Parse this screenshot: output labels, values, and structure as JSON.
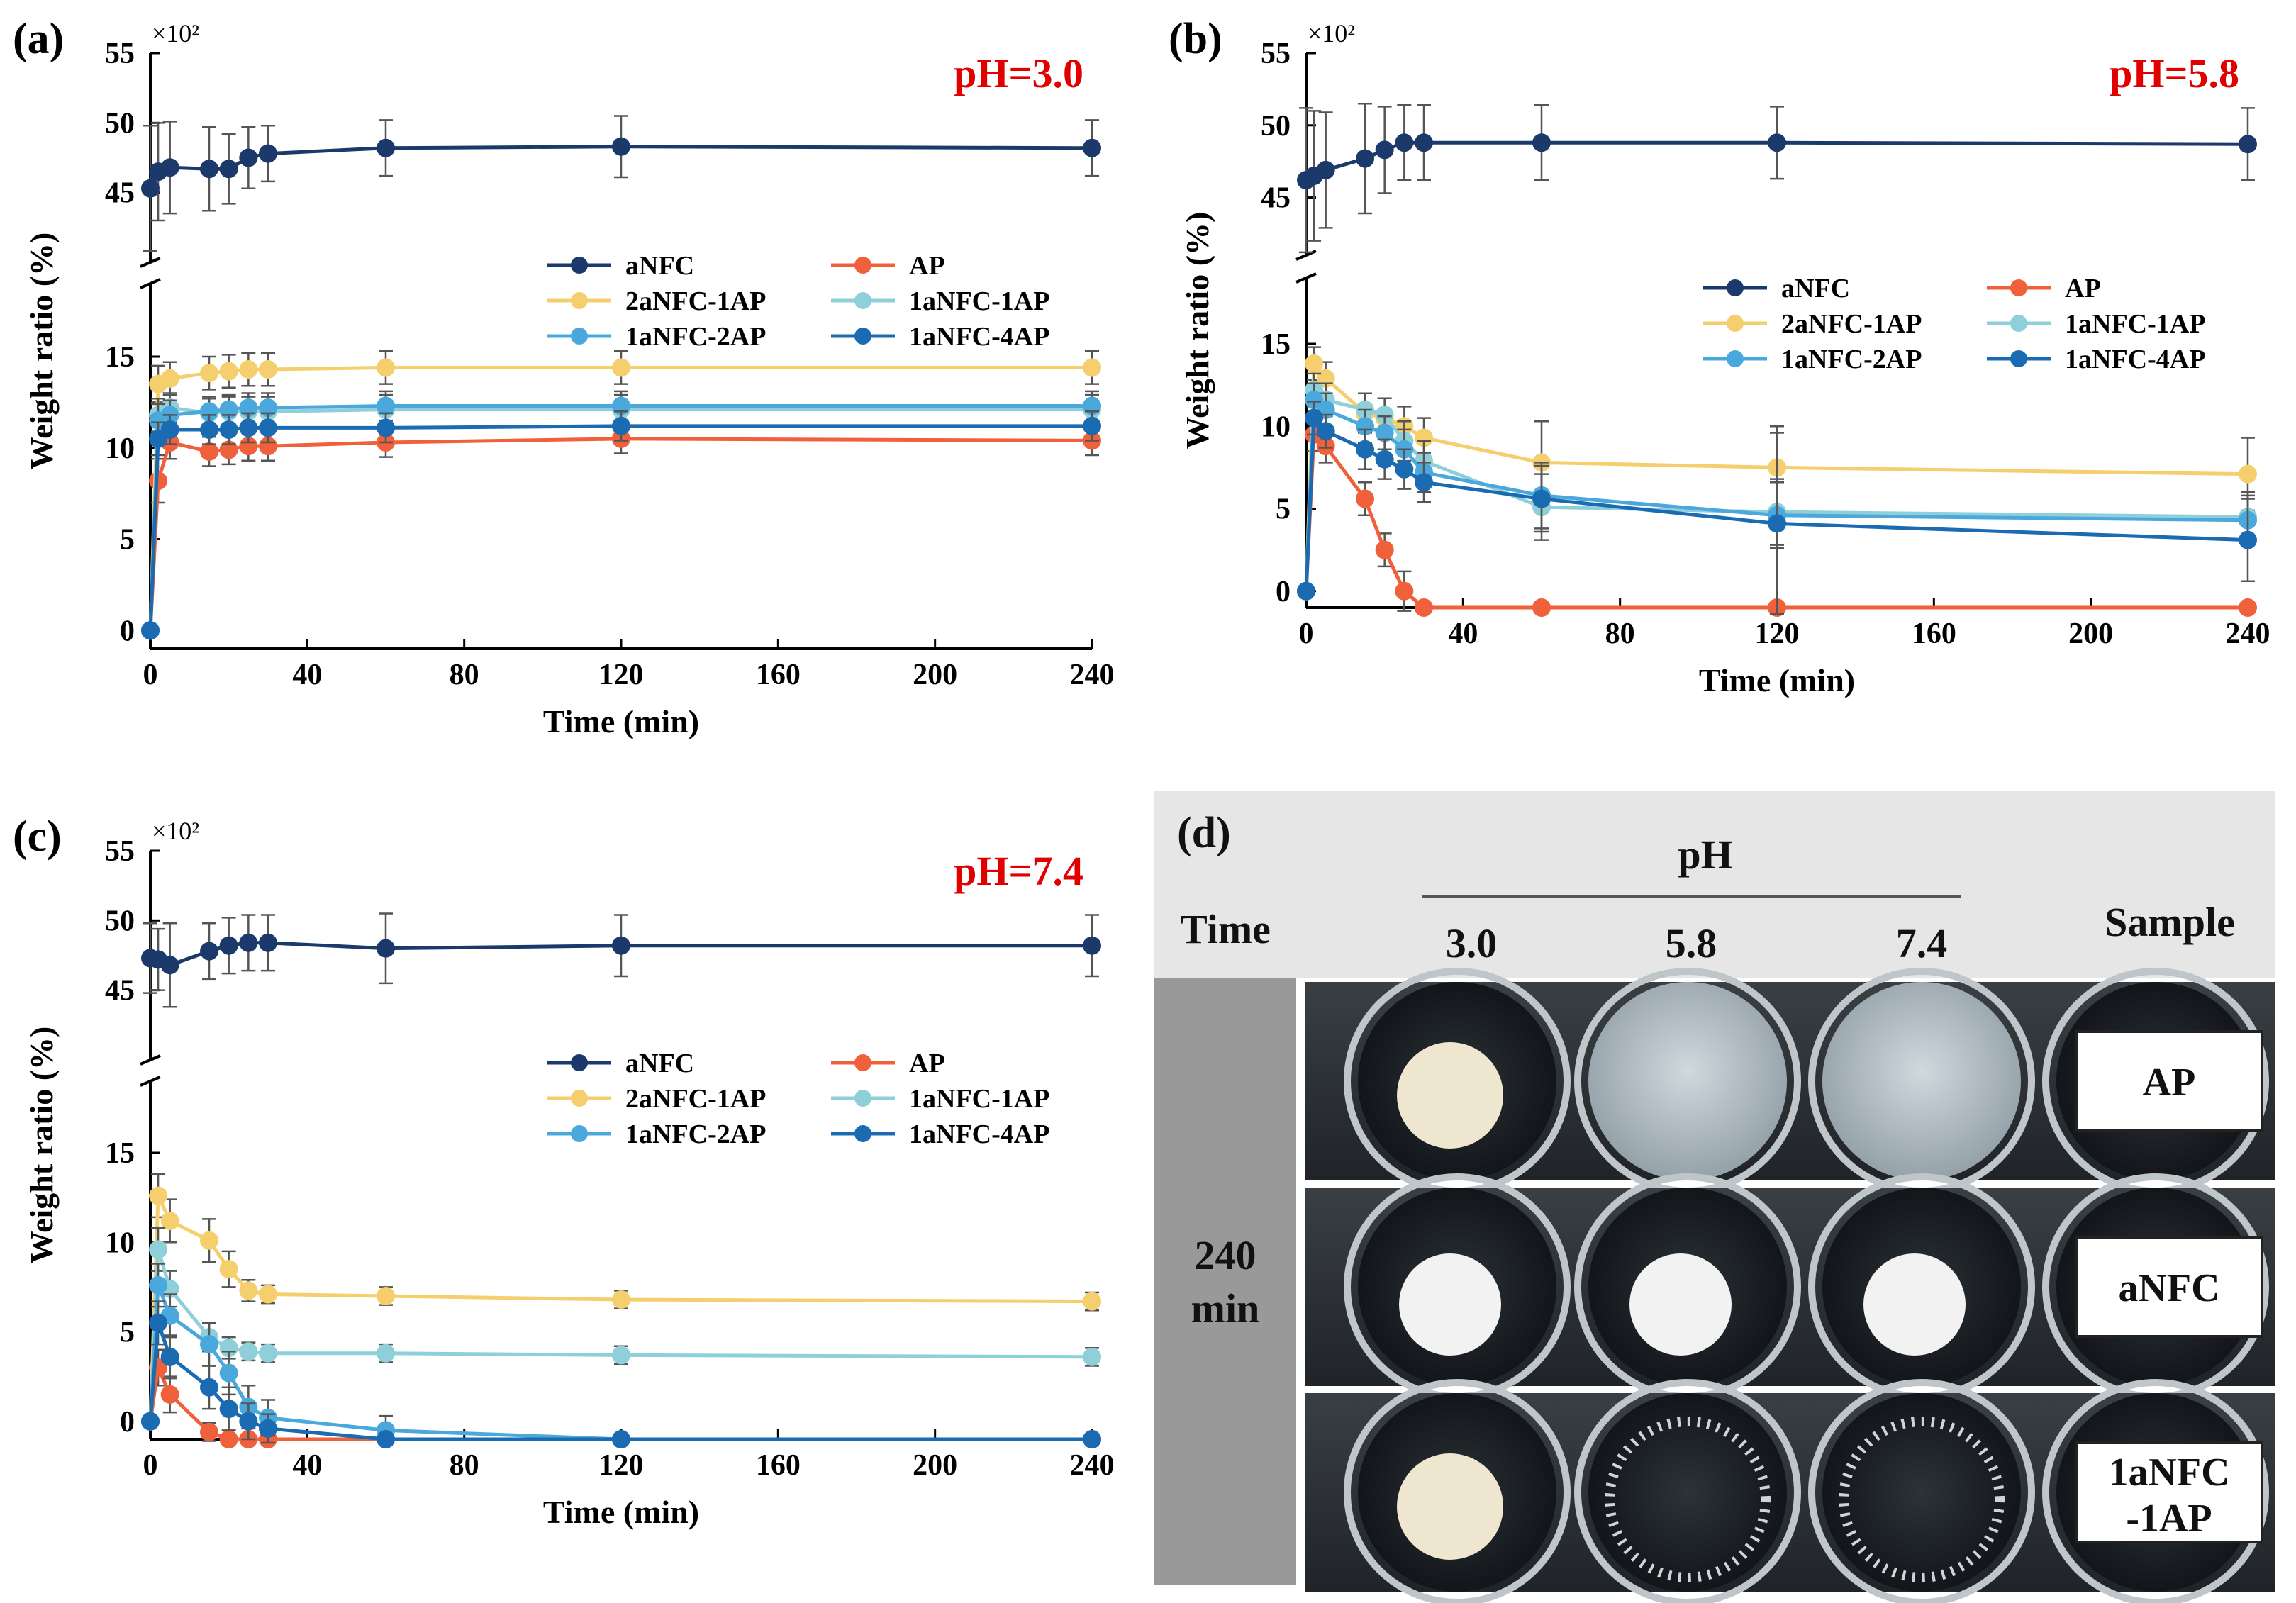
{
  "chart_data": [
    {
      "type": "line",
      "panel": "(a)",
      "annotation": "pH=3.0",
      "xlabel": "Time (min)",
      "ylabel": "Weight ratio (%)",
      "xlim": [
        0,
        240
      ],
      "x_ticks": [
        "0",
        "40",
        "80",
        "120",
        "160",
        "200",
        "240"
      ],
      "y_ticks_upper": [
        "45",
        "50",
        "55"
      ],
      "y_ticks_lower": [
        "0",
        "5",
        "10",
        "15"
      ],
      "y_multiplier": "×10²",
      "ylim_upper": [
        40,
        55
      ],
      "ylim_lower": [
        -1,
        19
      ],
      "y_axis_break": true,
      "legend": "center-right",
      "x": [
        0,
        2,
        5,
        15,
        20,
        25,
        30,
        60,
        120,
        240
      ],
      "series": [
        {
          "name": "aNFC",
          "color": "#1b3a6b",
          "axis": "upper",
          "values": [
            45.3,
            46.5,
            46.8,
            46.7,
            46.7,
            47.5,
            47.8,
            48.2,
            48.3,
            48.2
          ],
          "errors": [
            4.5,
            3.5,
            3.3,
            3.0,
            2.5,
            2.2,
            2.0,
            2.0,
            2.2,
            2.0
          ]
        },
        {
          "name": "AP",
          "color": "#f0603a",
          "axis": "lower",
          "values": [
            0,
            8.2,
            10.3,
            9.8,
            9.9,
            10.1,
            10.1,
            10.3,
            10.5,
            10.4
          ],
          "errors": [
            0,
            1.2,
            0.9,
            0.8,
            0.8,
            0.8,
            0.8,
            0.8,
            0.8,
            0.8
          ]
        },
        {
          "name": "2aNFC-1AP",
          "color": "#f5cf6e",
          "axis": "lower",
          "values": [
            0,
            13.5,
            13.8,
            14.1,
            14.2,
            14.3,
            14.3,
            14.4,
            14.4,
            14.4
          ],
          "errors": [
            0,
            1.0,
            0.9,
            0.9,
            0.9,
            0.9,
            0.9,
            0.9,
            0.9,
            0.9
          ]
        },
        {
          "name": "1aNFC-1AP",
          "color": "#8fcfd9",
          "axis": "lower",
          "values": [
            0,
            11.8,
            12.2,
            11.9,
            12.0,
            12.0,
            12.0,
            12.1,
            12.1,
            12.1
          ],
          "errors": [
            0,
            0.9,
            0.8,
            0.8,
            0.8,
            0.8,
            0.8,
            0.8,
            0.8,
            0.8
          ]
        },
        {
          "name": "1aNFC-2AP",
          "color": "#4aa8dc",
          "axis": "lower",
          "values": [
            0,
            11.5,
            11.8,
            12.0,
            12.1,
            12.2,
            12.2,
            12.3,
            12.3,
            12.3
          ],
          "errors": [
            0,
            0.9,
            0.8,
            0.8,
            0.8,
            0.8,
            0.8,
            0.8,
            0.8,
            0.8
          ]
        },
        {
          "name": "1aNFC-4AP",
          "color": "#1a6bb2",
          "axis": "lower",
          "values": [
            0,
            10.5,
            11.0,
            11.0,
            11.0,
            11.1,
            11.1,
            11.1,
            11.2,
            11.2
          ],
          "errors": [
            0,
            0.9,
            0.8,
            0.8,
            0.8,
            0.8,
            0.8,
            0.8,
            0.8,
            0.8
          ]
        }
      ]
    },
    {
      "type": "line",
      "panel": "(b)",
      "annotation": "pH=5.8",
      "xlabel": "Time (min)",
      "ylabel": "Weight ratio (%)",
      "xlim": [
        0,
        240
      ],
      "x_ticks": [
        "0",
        "40",
        "80",
        "120",
        "160",
        "200",
        "240"
      ],
      "y_ticks_upper": [
        "45",
        "50",
        "55"
      ],
      "y_ticks_lower": [
        "0",
        "5",
        "10",
        "15"
      ],
      "y_multiplier": "×10²",
      "ylim_upper": [
        41,
        55
      ],
      "ylim_lower": [
        -1,
        19
      ],
      "y_axis_break": true,
      "legend": "center-right",
      "x": [
        0,
        2,
        5,
        15,
        20,
        25,
        30,
        60,
        120,
        240
      ],
      "series": [
        {
          "name": "aNFC",
          "color": "#1b3a6b",
          "axis": "upper",
          "values": [
            46.2,
            46.5,
            46.9,
            47.7,
            48.3,
            48.8,
            48.8,
            48.8,
            48.8,
            48.7
          ],
          "errors": [
            5.0,
            4.5,
            4.0,
            3.8,
            3.0,
            2.6,
            2.6,
            2.6,
            2.5,
            2.5
          ]
        },
        {
          "name": "AP",
          "color": "#f0603a",
          "axis": "lower",
          "values": [
            0,
            9.5,
            8.8,
            5.6,
            2.5,
            0,
            -1.0,
            -1.0,
            -1.0,
            -1.0
          ],
          "errors": [
            0,
            1.0,
            1.0,
            1.0,
            1.0,
            1.2,
            0,
            0,
            0,
            0
          ]
        },
        {
          "name": "2aNFC-1AP",
          "color": "#f5cf6e",
          "axis": "lower",
          "values": [
            0,
            13.8,
            12.9,
            10.8,
            10.5,
            10.0,
            9.3,
            7.8,
            7.5,
            7.1
          ],
          "errors": [
            0,
            1.0,
            1.0,
            1.2,
            1.2,
            1.2,
            1.2,
            2.5,
            2.5,
            2.2
          ]
        },
        {
          "name": "1aNFC-1AP",
          "color": "#8fcfd9",
          "axis": "lower",
          "values": [
            0,
            12.2,
            11.6,
            11.0,
            10.7,
            9.1,
            7.9,
            5.1,
            4.8,
            4.5
          ],
          "errors": [
            0,
            1.0,
            1.0,
            1.0,
            1.0,
            1.2,
            1.2,
            2.0,
            2.0,
            1.5
          ]
        },
        {
          "name": "1aNFC-2AP",
          "color": "#4aa8dc",
          "axis": "lower",
          "values": [
            0,
            11.6,
            11.0,
            10.0,
            9.6,
            8.6,
            7.2,
            5.8,
            4.6,
            4.3
          ],
          "errors": [
            0,
            1.0,
            1.0,
            1.0,
            1.0,
            1.2,
            1.2,
            2.0,
            2.0,
            1.5
          ]
        },
        {
          "name": "1aNFC-4AP",
          "color": "#1a6bb2",
          "axis": "lower",
          "values": [
            0,
            10.5,
            9.7,
            8.6,
            8.0,
            7.4,
            6.6,
            5.6,
            4.1,
            3.1
          ],
          "errors": [
            0,
            1.0,
            1.0,
            1.2,
            1.2,
            1.2,
            1.2,
            2.0,
            5.5,
            2.5
          ]
        }
      ]
    },
    {
      "type": "line",
      "panel": "(c)",
      "annotation": "pH=7.4",
      "xlabel": "Time (min)",
      "ylabel": "Weight ratio (%)",
      "xlim": [
        0,
        240
      ],
      "x_ticks": [
        "0",
        "40",
        "80",
        "120",
        "160",
        "200",
        "240"
      ],
      "y_ticks_upper": [
        "45",
        "50",
        "55"
      ],
      "y_ticks_lower": [
        "0",
        "5",
        "10",
        "15"
      ],
      "y_multiplier": "×10²",
      "ylim_upper": [
        40,
        55
      ],
      "ylim_lower": [
        -1,
        19
      ],
      "y_axis_break": true,
      "legend": "center-right",
      "x": [
        0,
        2,
        5,
        15,
        20,
        25,
        30,
        60,
        120,
        240
      ],
      "series": [
        {
          "name": "aNFC",
          "color": "#1b3a6b",
          "axis": "upper",
          "values": [
            47.3,
            47.2,
            46.8,
            47.8,
            48.2,
            48.4,
            48.4,
            48.0,
            48.2,
            48.2
          ],
          "errors": [
            2.5,
            2.2,
            3.0,
            2.0,
            2.0,
            2.0,
            2.0,
            2.5,
            2.2,
            2.2
          ]
        },
        {
          "name": "AP",
          "color": "#f0603a",
          "axis": "lower",
          "values": [
            0,
            3.0,
            1.5,
            -0.6,
            -1.0,
            -1.0,
            -1.0,
            -1.0,
            -1.0,
            -1.0
          ],
          "errors": [
            0,
            1.0,
            1.0,
            0.5,
            0,
            0,
            0,
            0,
            0,
            0
          ]
        },
        {
          "name": "2aNFC-1AP",
          "color": "#f5cf6e",
          "axis": "lower",
          "values": [
            0,
            12.6,
            11.2,
            10.1,
            8.5,
            7.3,
            7.1,
            7.0,
            6.8,
            6.7
          ],
          "errors": [
            0,
            1.2,
            1.2,
            1.2,
            1.0,
            0.6,
            0.5,
            0.5,
            0.5,
            0.5
          ]
        },
        {
          "name": "1aNFC-1AP",
          "color": "#8fcfd9",
          "axis": "lower",
          "values": [
            0,
            9.6,
            7.4,
            4.7,
            4.1,
            3.9,
            3.8,
            3.8,
            3.7,
            3.6
          ],
          "errors": [
            0,
            1.2,
            1.0,
            0.8,
            0.6,
            0.5,
            0.5,
            0.5,
            0.5,
            0.5
          ]
        },
        {
          "name": "1aNFC-2AP",
          "color": "#4aa8dc",
          "axis": "lower",
          "values": [
            0,
            7.6,
            5.9,
            4.3,
            2.7,
            0.8,
            0.2,
            -0.5,
            -1.0,
            -1.0
          ],
          "errors": [
            0,
            1.2,
            1.2,
            1.2,
            1.2,
            1.2,
            1.0,
            0.8,
            0,
            0
          ]
        },
        {
          "name": "1aNFC-4AP",
          "color": "#1a6bb2",
          "axis": "lower",
          "values": [
            0,
            5.5,
            3.6,
            1.9,
            0.7,
            0.0,
            -0.4,
            -1.0,
            -1.0,
            -1.0
          ],
          "errors": [
            0,
            1.2,
            1.2,
            1.2,
            1.2,
            1.0,
            0.8,
            0,
            0,
            0
          ]
        }
      ]
    }
  ],
  "panel_d": {
    "letter": "(d)",
    "ph_header": "pH",
    "time_header": "Time",
    "sample_header": "Sample",
    "ph_values": [
      "3.0",
      "5.8",
      "7.4"
    ],
    "time_value_1": "240",
    "time_value_2": "min",
    "samples": [
      "AP",
      "aNFC",
      "1aNFC\n-1AP"
    ],
    "sample_line1": [
      "AP",
      "aNFC",
      "1aNFC"
    ],
    "sample_line2": [
      "",
      "",
      "-1AP"
    ]
  }
}
